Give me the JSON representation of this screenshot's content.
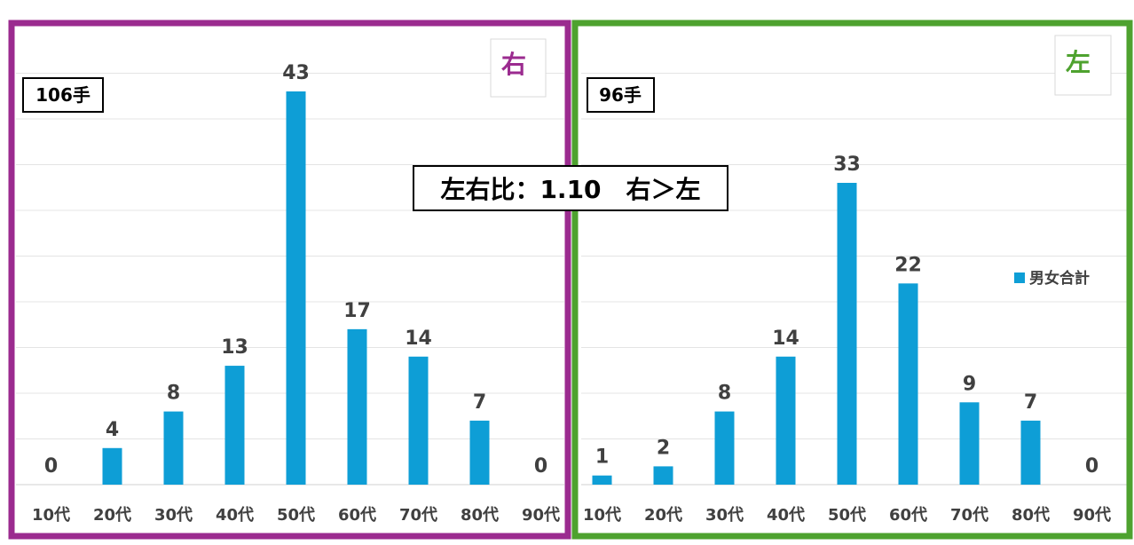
{
  "ratio_label": "左右比：1.10　右＞左",
  "legend_label": "男女合計",
  "colors": {
    "bar": "#0e9ed6",
    "right_frame": "#9b2b8f",
    "left_frame": "#4ea22f",
    "grid": "#e4e4e4",
    "text": "#404040"
  },
  "chart_data": [
    {
      "type": "bar",
      "side_badge": "右",
      "count_label": "106手",
      "categories": [
        "10代",
        "20代",
        "30代",
        "40代",
        "50代",
        "60代",
        "70代",
        "80代",
        "90代"
      ],
      "series": [
        {
          "name": "男女合計",
          "values": [
            0,
            4,
            8,
            13,
            43,
            17,
            14,
            7,
            0
          ]
        }
      ],
      "ylim": [
        0,
        43
      ]
    },
    {
      "type": "bar",
      "side_badge": "左",
      "count_label": "96手",
      "categories": [
        "10代",
        "20代",
        "30代",
        "40代",
        "50代",
        "60代",
        "70代",
        "80代",
        "90代"
      ],
      "series": [
        {
          "name": "男女合計",
          "values": [
            1,
            2,
            8,
            14,
            33,
            22,
            9,
            7,
            0
          ]
        }
      ],
      "ylim": [
        0,
        33
      ]
    }
  ]
}
